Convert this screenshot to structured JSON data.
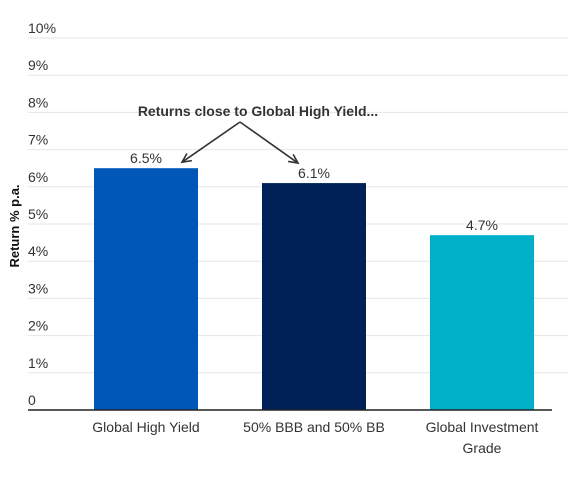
{
  "chart_data": {
    "type": "bar",
    "categories": [
      [
        "Global High Yield"
      ],
      [
        "50% BBB and 50% BB"
      ],
      [
        "Global Investment",
        "Grade"
      ]
    ],
    "values": [
      6.5,
      6.1,
      4.7
    ],
    "value_labels": [
      "6.5%",
      "6.1%",
      "4.7%"
    ],
    "colors": [
      "#0057b8",
      "#002157",
      "#00afc8"
    ],
    "ylabel": "Return % p.a.",
    "ylim": [
      0,
      10
    ],
    "ytick_labels": [
      "0",
      "1%",
      "2%",
      "3%",
      "4%",
      "5%",
      "6%",
      "7%",
      "8%",
      "9%",
      "10%"
    ],
    "grid": true,
    "annotation": {
      "text": "Returns close to Global High Yield...",
      "points_to": [
        "Global High Yield",
        "50% BBB and 50% BB"
      ]
    }
  }
}
